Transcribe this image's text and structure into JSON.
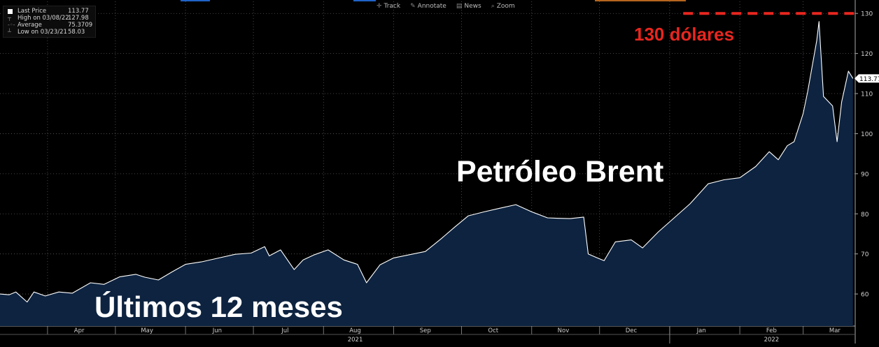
{
  "toolbar": {
    "track": "Track",
    "annotate": "Annotate",
    "news": "News",
    "zoom": "Zoom"
  },
  "legend": {
    "last_price_label": "Last Price",
    "last_price_value": "113.77",
    "high_label": "High on 03/08/22",
    "high_value": "127.98",
    "average_label": "Average",
    "average_value": "75.3709",
    "low_label": "Low on 03/23/21",
    "low_value": "58.03"
  },
  "annotations": {
    "title": "Petróleo Brent",
    "subtitle": "Últimos 12 meses",
    "target_label": "130 dólares"
  },
  "colors": {
    "background": "#000000",
    "area_fill": "#0d2340",
    "line": "#ffffff",
    "target_line": "#e8261f",
    "grid": "#5a5a5a",
    "accent_blue": "#1f63c9",
    "accent_orange": "#b5651d"
  },
  "chart_data": {
    "type": "area",
    "title": "",
    "xlabel": "",
    "ylabel": "",
    "ylim": [
      52,
      133
    ],
    "y_ticks": [
      60,
      70,
      80,
      90,
      100,
      110,
      120,
      130
    ],
    "grid": true,
    "last_value_label": "113.77",
    "target_value": 130,
    "x_range": [
      "2021-03-11",
      "2022-03-24"
    ],
    "x_month_labels": [
      {
        "date": "2021-04-15",
        "label": "Apr"
      },
      {
        "date": "2021-05-15",
        "label": "May"
      },
      {
        "date": "2021-06-15",
        "label": "Jun"
      },
      {
        "date": "2021-07-15",
        "label": "Jul"
      },
      {
        "date": "2021-08-15",
        "label": "Aug"
      },
      {
        "date": "2021-09-15",
        "label": "Sep"
      },
      {
        "date": "2021-10-15",
        "label": "Oct"
      },
      {
        "date": "2021-11-15",
        "label": "Nov"
      },
      {
        "date": "2021-12-15",
        "label": "Dec"
      },
      {
        "date": "2022-01-15",
        "label": "Jan"
      },
      {
        "date": "2022-02-15",
        "label": "Feb"
      },
      {
        "date": "2022-03-15",
        "label": "Mar"
      }
    ],
    "x_year_labels": [
      {
        "date": "2021-08-15",
        "label": "2021"
      },
      {
        "date": "2022-02-15",
        "label": "2022"
      }
    ],
    "series": [
      {
        "points": [
          [
            "2021-03-11",
            60.0
          ],
          [
            "2021-03-15",
            59.8
          ],
          [
            "2021-03-18",
            60.5
          ],
          [
            "2021-03-23",
            58.0
          ],
          [
            "2021-03-26",
            60.5
          ],
          [
            "2021-03-31",
            59.5
          ],
          [
            "2021-04-06",
            60.5
          ],
          [
            "2021-04-12",
            60.2
          ],
          [
            "2021-04-20",
            62.8
          ],
          [
            "2021-04-26",
            62.4
          ],
          [
            "2021-05-03",
            64.3
          ],
          [
            "2021-05-10",
            64.9
          ],
          [
            "2021-05-14",
            64.2
          ],
          [
            "2021-05-20",
            63.5
          ],
          [
            "2021-05-26",
            65.5
          ],
          [
            "2021-06-01",
            67.4
          ],
          [
            "2021-06-08",
            68.0
          ],
          [
            "2021-06-15",
            68.9
          ],
          [
            "2021-06-23",
            69.9
          ],
          [
            "2021-06-30",
            70.2
          ],
          [
            "2021-07-06",
            71.8
          ],
          [
            "2021-07-08",
            69.5
          ],
          [
            "2021-07-13",
            71.0
          ],
          [
            "2021-07-19",
            66.1
          ],
          [
            "2021-07-23",
            68.5
          ],
          [
            "2021-07-28",
            69.8
          ],
          [
            "2021-08-03",
            71.0
          ],
          [
            "2021-08-10",
            68.5
          ],
          [
            "2021-08-16",
            67.4
          ],
          [
            "2021-08-20",
            62.8
          ],
          [
            "2021-08-26",
            67.3
          ],
          [
            "2021-09-01",
            69.0
          ],
          [
            "2021-09-08",
            69.8
          ],
          [
            "2021-09-15",
            70.6
          ],
          [
            "2021-09-22",
            73.8
          ],
          [
            "2021-09-28",
            76.7
          ],
          [
            "2021-10-04",
            79.5
          ],
          [
            "2021-10-11",
            80.5
          ],
          [
            "2021-10-18",
            81.4
          ],
          [
            "2021-10-25",
            82.3
          ],
          [
            "2021-11-01",
            80.5
          ],
          [
            "2021-11-08",
            79.0
          ],
          [
            "2021-11-12",
            78.9
          ],
          [
            "2021-11-18",
            78.8
          ],
          [
            "2021-11-24",
            79.2
          ],
          [
            "2021-11-26",
            70.0
          ],
          [
            "2021-11-30",
            69.0
          ],
          [
            "2021-12-03",
            68.3
          ],
          [
            "2021-12-08",
            73.0
          ],
          [
            "2021-12-15",
            73.5
          ],
          [
            "2021-12-20",
            71.5
          ],
          [
            "2021-12-27",
            75.5
          ],
          [
            "2022-01-03",
            79.0
          ],
          [
            "2022-01-10",
            82.5
          ],
          [
            "2022-01-18",
            87.5
          ],
          [
            "2022-01-25",
            88.5
          ],
          [
            "2022-02-01",
            89.0
          ],
          [
            "2022-02-08",
            91.8
          ],
          [
            "2022-02-14",
            95.5
          ],
          [
            "2022-02-18",
            93.5
          ],
          [
            "2022-02-22",
            97.0
          ],
          [
            "2022-02-25",
            98.0
          ],
          [
            "2022-03-01",
            105.0
          ],
          [
            "2022-03-03",
            110.5
          ],
          [
            "2022-03-07",
            123.2
          ],
          [
            "2022-03-08",
            127.98
          ],
          [
            "2022-03-10",
            109.3
          ],
          [
            "2022-03-14",
            106.9
          ],
          [
            "2022-03-16",
            98.0
          ],
          [
            "2022-03-18",
            107.9
          ],
          [
            "2022-03-21",
            115.6
          ],
          [
            "2022-03-23",
            113.77
          ]
        ]
      }
    ]
  }
}
